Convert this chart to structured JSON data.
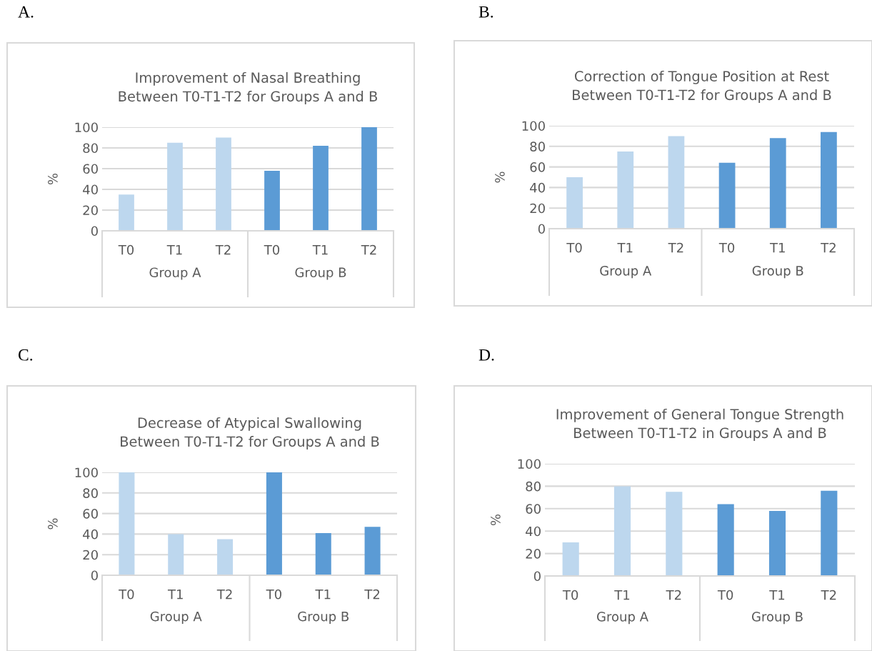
{
  "chart_data": [
    {
      "type": "bar",
      "title": "Improvement of Nasal Breathing\nBetween T0-T1-T2 for Groups A and B",
      "ylabel": "%",
      "categories": [
        "T0",
        "T1",
        "T2",
        "T0",
        "T1",
        "T2"
      ],
      "values": [
        35,
        85,
        90,
        58,
        82,
        100
      ],
      "colors": [
        "#bdd7ee",
        "#bdd7ee",
        "#bdd7ee",
        "#5b9bd5",
        "#5b9bd5",
        "#5b9bd5"
      ],
      "ylim": [
        0,
        100
      ],
      "yticks": [
        0,
        20,
        40,
        60,
        80,
        100
      ],
      "grid": "y",
      "annotations": [
        "A.",
        "Group A",
        "Group B"
      ]
    },
    {
      "type": "bar",
      "title": "Correction of Tongue Position at Rest\nBetween T0-T1-T2 for Groups A and B",
      "ylabel": "%",
      "categories": [
        "T0",
        "T1",
        "T2",
        "T0",
        "T1",
        "T2"
      ],
      "values": [
        50,
        75,
        90,
        64,
        88,
        94
      ],
      "colors": [
        "#bdd7ee",
        "#bdd7ee",
        "#bdd7ee",
        "#5b9bd5",
        "#5b9bd5",
        "#5b9bd5"
      ],
      "ylim": [
        0,
        100
      ],
      "yticks": [
        0,
        20,
        40,
        60,
        80,
        100
      ],
      "grid": "y",
      "annotations": [
        "B.",
        "Group A",
        "Group B"
      ]
    },
    {
      "type": "bar",
      "title": "Decrease of Atypical Swallowing\nBetween T0-T1-T2 for Groups A and B",
      "ylabel": "%",
      "categories": [
        "T0",
        "T1",
        "T2",
        "T0",
        "T1",
        "T2"
      ],
      "values": [
        100,
        40,
        35,
        100,
        41,
        47
      ],
      "colors": [
        "#bdd7ee",
        "#bdd7ee",
        "#bdd7ee",
        "#5b9bd5",
        "#5b9bd5",
        "#5b9bd5"
      ],
      "ylim": [
        0,
        100
      ],
      "yticks": [
        0,
        20,
        40,
        60,
        80,
        100
      ],
      "grid": "y",
      "annotations": [
        "C.",
        "Group A",
        "Group B"
      ]
    },
    {
      "type": "bar",
      "title": "Improvement of General Tongue Strength\nBetween T0-T1-T2 in Groups A and B",
      "ylabel": "%",
      "categories": [
        "T0",
        "T1",
        "T2",
        "T0",
        "T1",
        "T2"
      ],
      "values": [
        30,
        80,
        75,
        64,
        58,
        76
      ],
      "colors": [
        "#bdd7ee",
        "#bdd7ee",
        "#bdd7ee",
        "#5b9bd5",
        "#5b9bd5",
        "#5b9bd5"
      ],
      "ylim": [
        0,
        100
      ],
      "yticks": [
        0,
        20,
        40,
        60,
        80,
        100
      ],
      "grid": "y",
      "annotations": [
        "D.",
        "Group A",
        "Group B"
      ]
    }
  ]
}
